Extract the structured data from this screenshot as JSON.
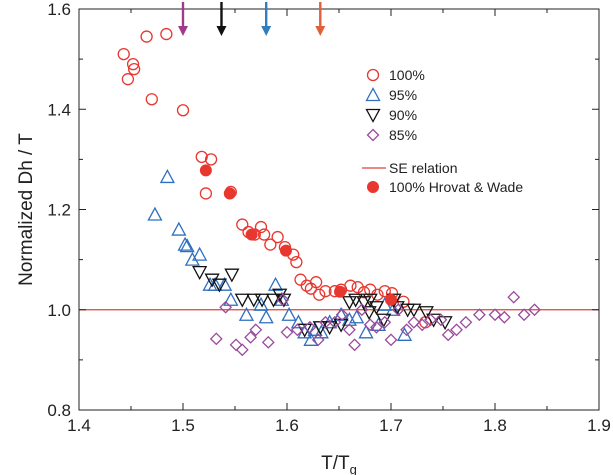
{
  "chart_data": {
    "type": "scatter",
    "xlabel": "T/T",
    "xlabel_subscript": "g",
    "ylabel": "Normalized Dh / T",
    "xlim": [
      1.4,
      1.9
    ],
    "ylim": [
      0.8,
      1.6
    ],
    "xticks": [
      "1.4",
      "1.5",
      "1.6",
      "1.7",
      "1.8",
      "1.9"
    ],
    "yticks": [
      "0.8",
      "1.0",
      "1.2",
      "1.4",
      "1.6"
    ],
    "grid": false,
    "legend_position": "upper-right",
    "reference_line": {
      "name": "SE relation",
      "y": 1.0,
      "color": "#e0403a"
    },
    "arrows": [
      {
        "x": 1.5,
        "color": "#a23a8c"
      },
      {
        "x": 1.537,
        "color": "#111111"
      },
      {
        "x": 1.58,
        "color": "#2f7fc0"
      },
      {
        "x": 1.632,
        "color": "#e0603a"
      }
    ],
    "series": [
      {
        "name": "100%",
        "marker": "circle-open",
        "color": "#e8372f",
        "points": [
          [
            1.443,
            1.51
          ],
          [
            1.447,
            1.46
          ],
          [
            1.452,
            1.49
          ],
          [
            1.453,
            1.48
          ],
          [
            1.465,
            1.545
          ],
          [
            1.47,
            1.42
          ],
          [
            1.484,
            1.55
          ],
          [
            1.5,
            1.398
          ],
          [
            1.518,
            1.305
          ],
          [
            1.527,
            1.3
          ],
          [
            1.522,
            1.232
          ],
          [
            1.546,
            1.235
          ],
          [
            1.557,
            1.17
          ],
          [
            1.563,
            1.155
          ],
          [
            1.569,
            1.15
          ],
          [
            1.575,
            1.165
          ],
          [
            1.578,
            1.15
          ],
          [
            1.584,
            1.13
          ],
          [
            1.591,
            1.145
          ],
          [
            1.598,
            1.125
          ],
          [
            1.606,
            1.11
          ],
          [
            1.609,
            1.095
          ],
          [
            1.613,
            1.06
          ],
          [
            1.619,
            1.048
          ],
          [
            1.623,
            1.042
          ],
          [
            1.628,
            1.055
          ],
          [
            1.631,
            1.03
          ],
          [
            1.637,
            1.037
          ],
          [
            1.646,
            1.037
          ],
          [
            1.652,
            1.04
          ],
          [
            1.661,
            1.048
          ],
          [
            1.668,
            1.045
          ],
          [
            1.674,
            1.035
          ],
          [
            1.68,
            1.04
          ],
          [
            1.687,
            1.03
          ],
          [
            1.694,
            1.037
          ],
          [
            1.701,
            1.033
          ],
          [
            1.712,
            1.016
          ],
          [
            1.733,
            0.975
          ]
        ]
      },
      {
        "name": "95%",
        "marker": "triangle-up-open",
        "color": "#2f6fc0",
        "points": [
          [
            1.473,
            1.19
          ],
          [
            1.485,
            1.265
          ],
          [
            1.496,
            1.16
          ],
          [
            1.502,
            1.13
          ],
          [
            1.504,
            1.127
          ],
          [
            1.509,
            1.1
          ],
          [
            1.516,
            1.11
          ],
          [
            1.526,
            1.05
          ],
          [
            1.531,
            1.05
          ],
          [
            1.54,
            1.05
          ],
          [
            1.546,
            1.02
          ],
          [
            1.561,
            0.99
          ],
          [
            1.575,
            1.01
          ],
          [
            1.58,
            0.985
          ],
          [
            1.589,
            1.05
          ],
          [
            1.595,
            1.02
          ],
          [
            1.602,
            0.99
          ],
          [
            1.611,
            0.975
          ],
          [
            1.617,
            0.955
          ],
          [
            1.623,
            0.94
          ],
          [
            1.627,
            0.96
          ],
          [
            1.633,
            0.955
          ],
          [
            1.641,
            0.975
          ],
          [
            1.652,
            0.99
          ],
          [
            1.66,
            0.98
          ],
          [
            1.667,
            0.985
          ],
          [
            1.676,
            0.955
          ],
          [
            1.688,
            0.97
          ],
          [
            1.694,
            1.01
          ],
          [
            1.702,
            1.0
          ],
          [
            1.713,
            0.95
          ]
        ]
      },
      {
        "name": "90%",
        "marker": "triangle-down-open",
        "color": "#111111",
        "points": [
          [
            1.516,
            1.075
          ],
          [
            1.528,
            1.06
          ],
          [
            1.535,
            1.05
          ],
          [
            1.547,
            1.07
          ],
          [
            1.557,
            1.02
          ],
          [
            1.568,
            1.02
          ],
          [
            1.576,
            1.02
          ],
          [
            1.587,
            1.02
          ],
          [
            1.593,
            1.03
          ],
          [
            1.597,
            1.02
          ],
          [
            1.617,
            0.96
          ],
          [
            1.632,
            0.965
          ],
          [
            1.641,
            0.965
          ],
          [
            1.652,
            0.97
          ],
          [
            1.66,
            1.015
          ],
          [
            1.666,
            1.02
          ],
          [
            1.674,
            1.015
          ],
          [
            1.679,
            0.995
          ],
          [
            1.68,
            1.02
          ],
          [
            1.686,
            1.005
          ],
          [
            1.693,
            0.98
          ],
          [
            1.703,
            1.02
          ],
          [
            1.706,
            1.005
          ],
          [
            1.716,
            1.0
          ],
          [
            1.722,
            1.0
          ],
          [
            1.734,
            0.995
          ],
          [
            1.741,
            0.98
          ],
          [
            1.752,
            0.975
          ]
        ]
      },
      {
        "name": "85%",
        "marker": "diamond-open",
        "color": "#9a4a9c",
        "points": [
          [
            1.532,
            0.942
          ],
          [
            1.541,
            1.005
          ],
          [
            1.551,
            0.93
          ],
          [
            1.557,
            0.92
          ],
          [
            1.565,
            0.945
          ],
          [
            1.57,
            0.96
          ],
          [
            1.582,
            0.935
          ],
          [
            1.596,
            1.02
          ],
          [
            1.6,
            0.955
          ],
          [
            1.61,
            0.96
          ],
          [
            1.622,
            0.965
          ],
          [
            1.63,
            0.94
          ],
          [
            1.637,
            0.975
          ],
          [
            1.646,
            0.975
          ],
          [
            1.653,
            0.99
          ],
          [
            1.66,
            0.96
          ],
          [
            1.665,
            0.93
          ],
          [
            1.672,
            1.0
          ],
          [
            1.68,
            0.97
          ],
          [
            1.686,
            0.965
          ],
          [
            1.694,
            0.975
          ],
          [
            1.7,
            0.94
          ],
          [
            1.707,
            1.0
          ],
          [
            1.715,
            0.96
          ],
          [
            1.722,
            0.975
          ],
          [
            1.73,
            0.97
          ],
          [
            1.738,
            0.98
          ],
          [
            1.748,
            0.98
          ],
          [
            1.755,
            0.95
          ],
          [
            1.763,
            0.96
          ],
          [
            1.772,
            0.975
          ],
          [
            1.785,
            0.99
          ],
          [
            1.8,
            0.99
          ],
          [
            1.809,
            0.985
          ],
          [
            1.818,
            1.025
          ],
          [
            1.828,
            0.99
          ],
          [
            1.838,
            1.0
          ]
        ]
      },
      {
        "name": "100%  Hrovat & Wade",
        "marker": "circle-filled",
        "color": "#e8372f",
        "points": [
          [
            1.522,
            1.278
          ],
          [
            1.545,
            1.232
          ],
          [
            1.566,
            1.15
          ],
          [
            1.599,
            1.118
          ],
          [
            1.651,
            1.036
          ],
          [
            1.7,
            1.02
          ]
        ]
      }
    ]
  }
}
